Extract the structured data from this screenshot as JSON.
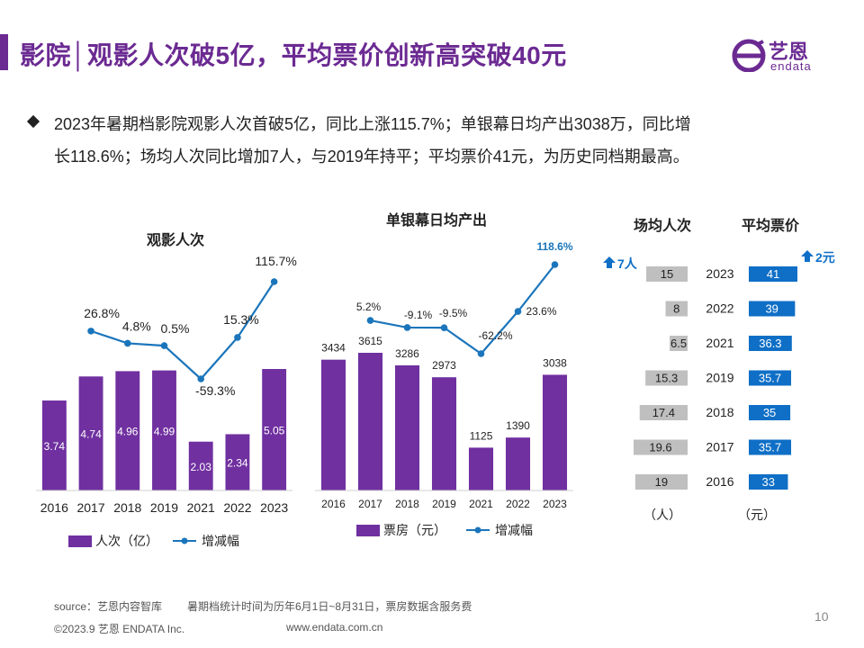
{
  "header": {
    "title": "影院│观影人次破5亿，平均票价创新高突破40元",
    "logo_cn": "艺恩",
    "logo_en": "endata"
  },
  "summary": {
    "line1": "2023年暑期档影院观影人次首破5亿，同比上涨115.7%；单银幕日均产出3038万，同比增",
    "line2": "长118.6%；场均人次同比增加7人，与2019年持平；平均票价41元，为历史同档期最高。"
  },
  "colors": {
    "purple": "#7030a0",
    "blue_line": "#1b75bb",
    "gray_bar": "#bfbfbf",
    "blue_bar": "#0f6fc6",
    "title_purple": "#6b2a92"
  },
  "chart_data": [
    {
      "type": "bar",
      "title": "观影人次",
      "categories": [
        "2016",
        "2017",
        "2018",
        "2019",
        "2021",
        "2022",
        "2023"
      ],
      "series": [
        {
          "name": "人次（亿）",
          "kind": "bar",
          "values": [
            3.74,
            4.74,
            4.96,
            4.99,
            2.03,
            2.34,
            5.05
          ]
        },
        {
          "name": "增减幅",
          "kind": "line",
          "values": [
            null,
            26.8,
            4.8,
            0.5,
            -59.3,
            15.3,
            115.7
          ],
          "labels": [
            "",
            "26.8%",
            "4.8%",
            "0.5%",
            "-59.3%",
            "15.3%",
            "115.7%"
          ]
        }
      ],
      "bar_labels": [
        "3.74",
        "4.74",
        "4.96",
        "4.99",
        "2.03",
        "2.34",
        "5.05"
      ],
      "legend": [
        "人次（亿）",
        "增减幅"
      ]
    },
    {
      "type": "bar",
      "title": "单银幕日均产出",
      "categories": [
        "2016",
        "2017",
        "2018",
        "2019",
        "2021",
        "2022",
        "2023"
      ],
      "series": [
        {
          "name": "票房（元）",
          "kind": "bar",
          "values": [
            3434,
            3615,
            3286,
            2973,
            1125,
            1390,
            3038
          ]
        },
        {
          "name": "增减幅",
          "kind": "line",
          "values": [
            null,
            5.2,
            -9.1,
            -9.5,
            -62.2,
            23.6,
            118.6
          ],
          "labels": [
            "",
            "5.2%",
            "-9.1%",
            "-9.5%",
            "-62.2%",
            "23.6%",
            "118.6%"
          ]
        }
      ],
      "bar_labels": [
        "3434",
        "3615",
        "3286",
        "2973",
        "1125",
        "1390",
        "3038"
      ],
      "legend": [
        "票房（元）",
        "增减幅"
      ]
    },
    {
      "type": "bar",
      "orientation": "horizontal",
      "title_left": "场均人次",
      "title_right": "平均票价",
      "categories": [
        "2023",
        "2022",
        "2021",
        "2019",
        "2018",
        "2017",
        "2016"
      ],
      "series": [
        {
          "name": "场均人次",
          "values": [
            15,
            8,
            6.5,
            15.3,
            17.4,
            19.6,
            19
          ],
          "labels": [
            "15",
            "8",
            "6.5",
            "15.3",
            "17.4",
            "19.6",
            "19"
          ]
        },
        {
          "name": "平均票价",
          "values": [
            41,
            39,
            36.3,
            35.7,
            35,
            35.7,
            33
          ],
          "labels": [
            "41",
            "39",
            "36.3",
            "35.7",
            "35",
            "35.7",
            "33"
          ]
        }
      ],
      "change_left": "7人",
      "change_right": "2元",
      "unit_left": "（人）",
      "unit_right": "（元）"
    }
  ],
  "footer": {
    "source": "source：艺恩内容智库",
    "note": "暑期档统计时间为历年6月1日~8月31日，票房数据含服务费",
    "copyright": "©2023.9 艺恩 ENDATA Inc.",
    "website": "www.endata.com.cn",
    "page": "10"
  }
}
